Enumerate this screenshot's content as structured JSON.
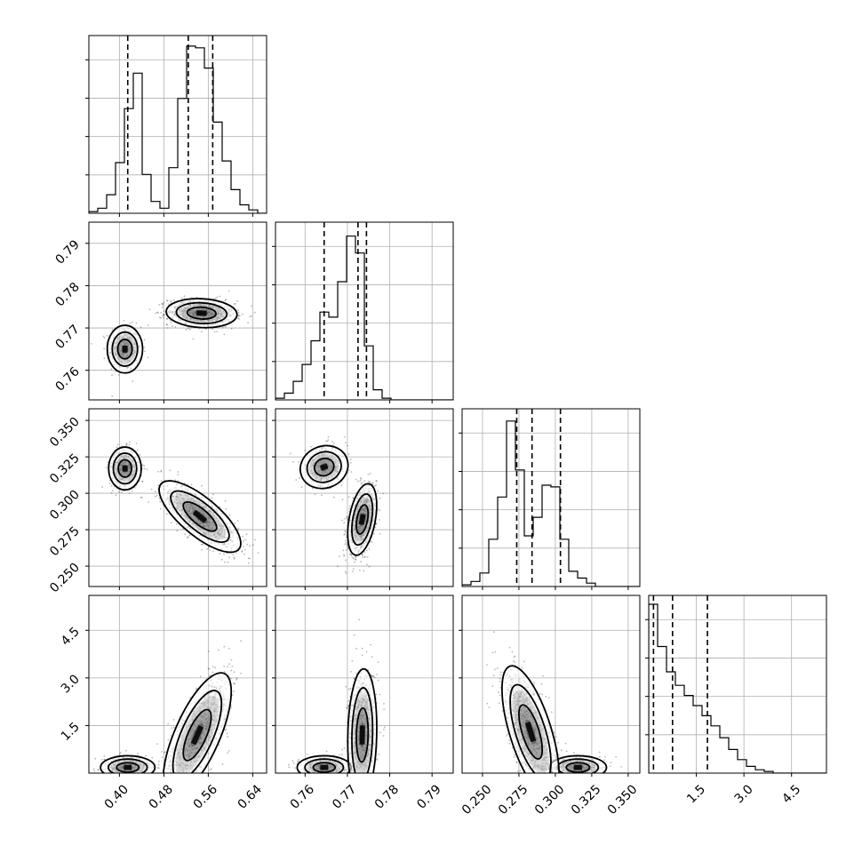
{
  "chart_data": {
    "type": "corner",
    "n_params": 4,
    "params": [
      {
        "range": [
          0.345,
          0.665
        ],
        "ticks": [
          0.4,
          0.48,
          0.56,
          0.64
        ],
        "tick_labels": [
          "0.40",
          "0.48",
          "0.56",
          "0.64"
        ],
        "quantiles": [
          0.415,
          0.524,
          0.568
        ],
        "hist_heights": [
          0.01,
          0.03,
          0.11,
          0.3,
          0.62,
          0.83,
          0.23,
          0.07,
          0.03,
          0.27,
          0.68,
          0.99,
          0.98,
          0.86,
          0.54,
          0.31,
          0.14,
          0.05,
          0.02,
          0.0
        ],
        "modes": [
          {
            "mean": 0.41,
            "sd": 0.013,
            "weight": 0.3
          },
          {
            "mean": 0.55,
            "sd": 0.025,
            "weight": 0.7
          }
        ]
      },
      {
        "range": [
          0.753,
          0.795
        ],
        "ticks": [
          0.76,
          0.77,
          0.78,
          0.79
        ],
        "tick_labels": [
          "0.76",
          "0.77",
          "0.78",
          "0.79"
        ],
        "quantiles": [
          0.7645,
          0.7725,
          0.7745
        ],
        "hist_heights": [
          0.01,
          0.04,
          0.11,
          0.21,
          0.35,
          0.52,
          0.49,
          0.7,
          0.97,
          0.87,
          0.32,
          0.06,
          0.01,
          0.0,
          0.0,
          0.0,
          0.0,
          0.0,
          0.0,
          0.0
        ],
        "modes": [
          {
            "mean": 0.765,
            "sd": 0.0023,
            "weight": 0.3
          },
          {
            "mean": 0.7735,
            "sd": 0.0014,
            "weight": 0.7
          }
        ]
      },
      {
        "range": [
          0.236,
          0.358
        ],
        "ticks": [
          0.25,
          0.275,
          0.3,
          0.325,
          0.35
        ],
        "tick_labels": [
          "0.250",
          "0.275",
          "0.300",
          "0.325",
          "0.350"
        ],
        "quantiles": [
          0.2735,
          0.284,
          0.3035
        ],
        "hist_heights": [
          0.01,
          0.03,
          0.08,
          0.28,
          0.53,
          0.98,
          0.69,
          0.3,
          0.41,
          0.6,
          0.59,
          0.28,
          0.09,
          0.05,
          0.02,
          0.0,
          0.0,
          0.0,
          0.0,
          0.0
        ],
        "modes": [
          {
            "mean": 0.285,
            "sd": 0.01,
            "weight": 0.7
          },
          {
            "mean": 0.315,
            "sd": 0.006,
            "weight": 0.3
          }
        ]
      },
      {
        "range": [
          0.0,
          5.6
        ],
        "ticks": [
          1.5,
          3.0,
          4.5
        ],
        "tick_labels": [
          "1.5",
          "3.0",
          "4.5"
        ],
        "quantiles": [
          0.15,
          0.75,
          1.85
        ],
        "hist_heights": [
          1.0,
          0.75,
          0.6,
          0.52,
          0.46,
          0.4,
          0.34,
          0.28,
          0.21,
          0.14,
          0.08,
          0.04,
          0.02,
          0.01,
          0.0,
          0.0,
          0.0,
          0.0,
          0.0,
          0.0
        ],
        "modes": [
          {
            "mean": 0.18,
            "sd": 0.15,
            "weight": 0.3
          },
          {
            "mean": 1.0,
            "sd": 0.9,
            "weight": 0.7
          }
        ]
      }
    ],
    "pair_modes": {
      "1-0": [
        {
          "center": [
            0.41,
            0.765
          ],
          "sd": [
            0.013,
            0.0023
          ],
          "rho": 0.0,
          "weight": 0.3
        },
        {
          "center": [
            0.548,
            0.7735
          ],
          "sd": [
            0.026,
            0.0014
          ],
          "rho": -0.1,
          "weight": 0.7
        }
      ],
      "2-0": [
        {
          "center": [
            0.41,
            0.317
          ],
          "sd": [
            0.012,
            0.006
          ],
          "rho": 0.0,
          "weight": 0.3
        },
        {
          "center": [
            0.545,
            0.284
          ],
          "sd": [
            0.03,
            0.01
          ],
          "rho": -0.75,
          "weight": 0.7
        }
      ],
      "2-1": [
        {
          "center": [
            0.7645,
            0.318
          ],
          "sd": [
            0.0023,
            0.006
          ],
          "rho": 0.1,
          "weight": 0.3
        },
        {
          "center": [
            0.7735,
            0.282
          ],
          "sd": [
            0.0014,
            0.01
          ],
          "rho": 0.4,
          "weight": 0.7
        }
      ],
      "3-0": [
        {
          "center": [
            0.415,
            0.18
          ],
          "sd": [
            0.02,
            0.15
          ],
          "rho": 0.0,
          "weight": 0.3
        },
        {
          "center": [
            0.54,
            1.2
          ],
          "sd": [
            0.025,
            0.8
          ],
          "rho": 0.7,
          "weight": 0.7
        }
      ],
      "3-1": [
        {
          "center": [
            0.7645,
            0.18
          ],
          "sd": [
            0.0026,
            0.15
          ],
          "rho": 0.0,
          "weight": 0.3
        },
        {
          "center": [
            0.7735,
            1.2
          ],
          "sd": [
            0.0014,
            0.85
          ],
          "rho": 0.1,
          "weight": 0.7
        }
      ],
      "3-2": [
        {
          "center": [
            0.3155,
            0.18
          ],
          "sd": [
            0.008,
            0.15
          ],
          "rho": 0.0,
          "weight": 0.3
        },
        {
          "center": [
            0.283,
            1.3
          ],
          "sd": [
            0.008,
            0.85
          ],
          "rho": -0.65,
          "weight": 0.7
        }
      ]
    },
    "title": "",
    "xlabel": "",
    "ylabel": "",
    "grid": true
  }
}
